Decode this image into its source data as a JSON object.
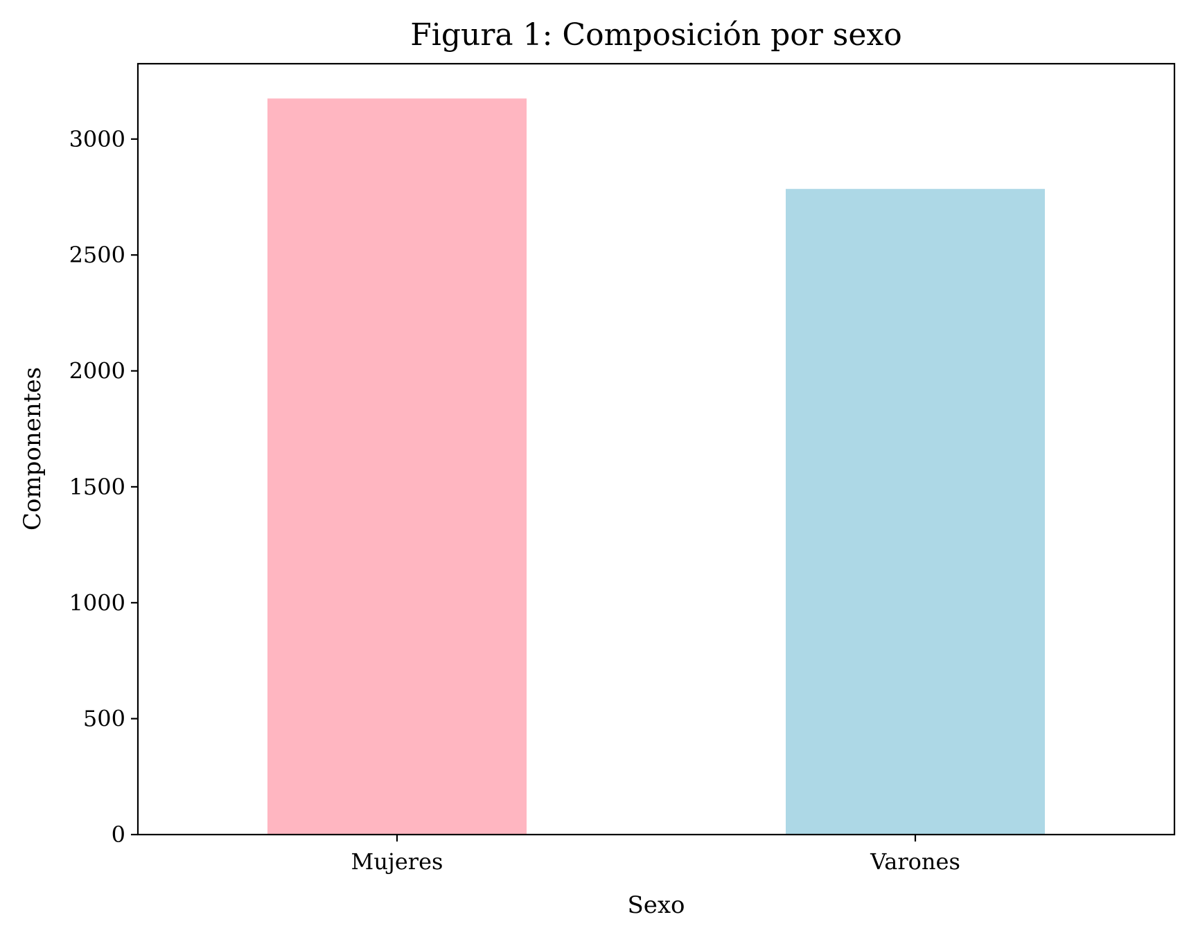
{
  "chart_data": {
    "type": "bar",
    "title": "Figura 1: Composición por sexo",
    "xlabel": "Sexo",
    "ylabel": "Componentes",
    "categories": [
      "Mujeres",
      "Varones"
    ],
    "values": [
      3175,
      2785
    ],
    "colors": [
      "#ffb6c1",
      "#add8e6"
    ],
    "ylim": [
      0,
      3325
    ],
    "yticks": [
      0,
      500,
      1000,
      1500,
      2000,
      2500,
      3000
    ],
    "grid": false
  }
}
